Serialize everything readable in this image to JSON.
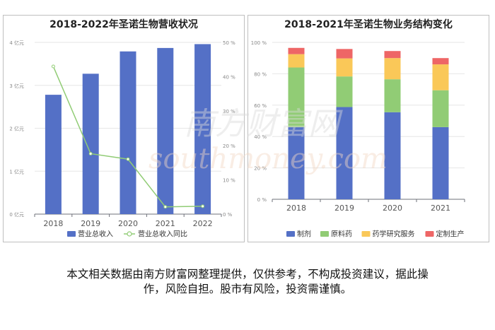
{
  "chart_data": [
    {
      "type": "bar+line",
      "title": "2018-2022年圣诺生物营收状况",
      "categories": [
        "2018",
        "2019",
        "2020",
        "2021",
        "2022"
      ],
      "y_left": {
        "min": 0,
        "max": 4,
        "ticks": [
          0,
          1,
          2,
          3,
          4
        ],
        "tick_labels": [
          "0 亿元",
          "1 亿元",
          "2 亿元",
          "3 亿元",
          "4 亿元"
        ]
      },
      "y_right": {
        "min": 0,
        "max": 50,
        "ticks": [
          0,
          10,
          20,
          30,
          40,
          50
        ],
        "tick_labels": [
          "0 %",
          "10 %",
          "20 %",
          "30 %",
          "40 %",
          "50 %"
        ]
      },
      "series": [
        {
          "name": "营业总收入",
          "type": "bar",
          "axis": "left",
          "color": "#5470c6",
          "values": [
            2.78,
            3.27,
            3.79,
            3.87,
            3.96
          ]
        },
        {
          "name": "营业总收入同比",
          "type": "line",
          "axis": "right",
          "color": "#91cc75",
          "values": [
            43.0,
            17.6,
            16.0,
            2.1,
            2.3
          ]
        }
      ],
      "grid": true,
      "legend_position": "bottom"
    },
    {
      "type": "stacked-bar",
      "title": "2018-2021年圣诺生物业务结构变化",
      "categories": [
        "2018",
        "2019",
        "2020",
        "2021"
      ],
      "y": {
        "min": 0,
        "max": 100,
        "ticks": [
          0,
          20,
          40,
          60,
          80,
          100
        ],
        "tick_labels": [
          "0 %",
          "20 %",
          "40 %",
          "60 %",
          "80 %",
          "100 %"
        ]
      },
      "series": [
        {
          "name": "制剂",
          "color": "#5470c6",
          "values": [
            46.0,
            58.8,
            55.5,
            46.0
          ]
        },
        {
          "name": "原料药",
          "color": "#91cc75",
          "values": [
            38.0,
            19.5,
            21.0,
            23.5
          ]
        },
        {
          "name": "药学研究服务",
          "color": "#fac858",
          "values": [
            8.5,
            11.5,
            13.5,
            16.5
          ]
        },
        {
          "name": "定制生产",
          "color": "#ee6666",
          "values": [
            4.0,
            6.0,
            4.5,
            4.0
          ]
        }
      ],
      "grid": true,
      "legend_position": "bottom"
    }
  ],
  "disclaimer": {
    "line1": "本文相关数据由南方财富网整理提供，仅供参考，不构成投资建议，据此操",
    "line2": "作，风险自担。股市有风险，投资需谨慎。"
  },
  "watermark": {
    "cn": "南方财富网",
    "en": "southmoney.com"
  }
}
